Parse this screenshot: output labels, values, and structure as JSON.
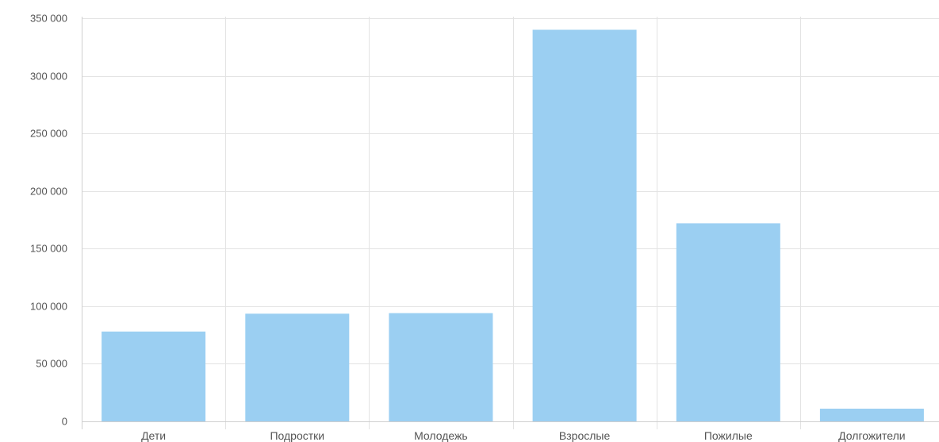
{
  "chart_data": {
    "type": "bar",
    "categories": [
      "Дети",
      "Подростки",
      "Молодежь",
      "Взрослые",
      "Пожилые",
      "Долгожители"
    ],
    "values": [
      78000,
      93500,
      94000,
      340000,
      172000,
      11000
    ],
    "ylim": [
      0,
      350000
    ],
    "yticks": [
      0,
      50000,
      100000,
      150000,
      200000,
      250000,
      300000,
      350000
    ],
    "ytick_labels": [
      "0",
      "50 000",
      "100 000",
      "150 000",
      "200 000",
      "250 000",
      "300 000",
      "350 000"
    ],
    "grid": true,
    "bar_color": "#9bcff2"
  }
}
